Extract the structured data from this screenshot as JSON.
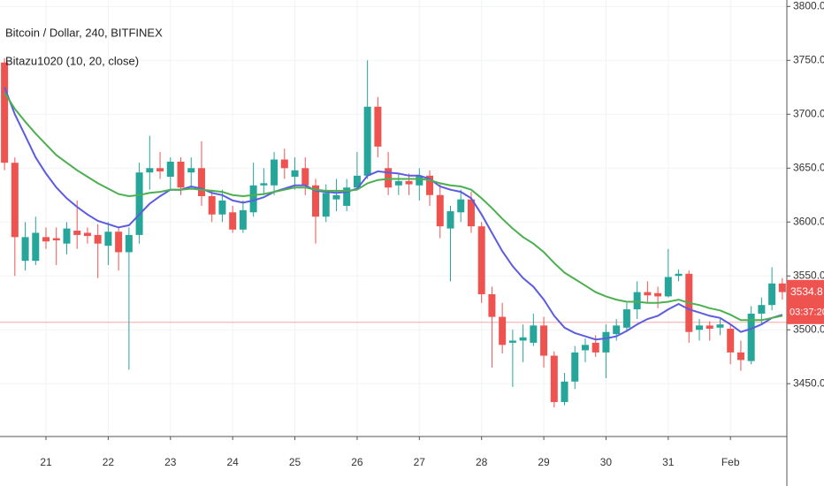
{
  "chart_data": {
    "type": "candlestick",
    "title": "Bitcoin / Dollar, 240, BITFINEX",
    "subtitle": "Bitazu1020 (10, 20, close)",
    "categories": [
      null,
      null,
      null,
      null,
      "21",
      null,
      null,
      null,
      null,
      null,
      "22",
      null,
      null,
      null,
      null,
      null,
      "23",
      null,
      null,
      null,
      null,
      null,
      "24",
      null,
      null,
      null,
      null,
      null,
      "25",
      null,
      null,
      null,
      null,
      null,
      "26",
      null,
      null,
      null,
      null,
      null,
      "27",
      null,
      null,
      null,
      null,
      null,
      "28",
      null,
      null,
      null,
      null,
      null,
      "29",
      null,
      null,
      null,
      null,
      null,
      "30",
      null,
      null,
      null,
      null,
      null,
      "31",
      null,
      null,
      null,
      null,
      null,
      "Feb",
      null,
      null,
      null,
      null,
      null
    ],
    "open": [
      3748,
      3655,
      3564,
      3564,
      3586,
      3585,
      3580,
      3592,
      3590,
      3588,
      3578,
      3591,
      3572,
      3588,
      3646,
      3650,
      3642,
      3656,
      3646,
      3650,
      3624,
      3607,
      3609,
      3593,
      3609,
      3634,
      3634,
      3658,
      3642,
      3650,
      3634,
      3605,
      3621,
      3615,
      3632,
      3643,
      3707,
      3650,
      3634,
      3638,
      3634,
      3643,
      3625,
      3594,
      3609,
      3621,
      3596,
      3533,
      3512,
      3488,
      3490,
      3488,
      3504,
      3476,
      3433,
      3452,
      3481,
      3488,
      3479,
      3496,
      3502,
      3519,
      3535,
      3534,
      3531,
      3550,
      3552,
      3500,
      3504,
      3502,
      3501,
      3479,
      3471,
      3515,
      3523,
      3543
    ],
    "high": [
      3752,
      3660,
      3600,
      3605,
      3595,
      3595,
      3600,
      3620,
      3595,
      3598,
      3600,
      3595,
      3595,
      3655,
      3680,
      3665,
      3660,
      3660,
      3660,
      3675,
      3630,
      3630,
      3615,
      3620,
      3655,
      3650,
      3665,
      3668,
      3660,
      3660,
      3640,
      3635,
      3640,
      3640,
      3665,
      3750,
      3716,
      3665,
      3645,
      3645,
      3650,
      3648,
      3635,
      3615,
      3630,
      3628,
      3600,
      3540,
      3525,
      3500,
      3505,
      3515,
      3512,
      3480,
      3460,
      3485,
      3492,
      3495,
      3505,
      3510,
      3525,
      3545,
      3545,
      3540,
      3575,
      3556,
      3555,
      3510,
      3508,
      3510,
      3505,
      3490,
      3522,
      3530,
      3558,
      3548
    ],
    "low": [
      3648,
      3550,
      3555,
      3560,
      3575,
      3560,
      3570,
      3575,
      3580,
      3548,
      3560,
      3555,
      3463,
      3580,
      3630,
      3640,
      3630,
      3625,
      3630,
      3615,
      3600,
      3600,
      3590,
      3590,
      3605,
      3625,
      3625,
      3640,
      3630,
      3625,
      3580,
      3600,
      3610,
      3610,
      3630,
      3640,
      3660,
      3625,
      3625,
      3625,
      3620,
      3615,
      3585,
      3545,
      3600,
      3590,
      3525,
      3465,
      3478,
      3447,
      3470,
      3485,
      3465,
      3428,
      3430,
      3445,
      3470,
      3475,
      3455,
      3490,
      3498,
      3510,
      3525,
      3520,
      3530,
      3545,
      3488,
      3490,
      3490,
      3495,
      3468,
      3462,
      3468,
      3505,
      3518,
      3528
    ],
    "close": [
      3655,
      3586,
      3586,
      3590,
      3582,
      3583,
      3594,
      3588,
      3587,
      3580,
      3591,
      3572,
      3588,
      3646,
      3650,
      3647,
      3656,
      3632,
      3650,
      3624,
      3607,
      3620,
      3593,
      3611,
      3634,
      3636,
      3658,
      3650,
      3648,
      3634,
      3605,
      3627,
      3625,
      3632,
      3643,
      3707,
      3670,
      3632,
      3638,
      3635,
      3643,
      3625,
      3596,
      3610,
      3621,
      3596,
      3533,
      3512,
      3486,
      3490,
      3493,
      3504,
      3476,
      3433,
      3452,
      3479,
      3486,
      3479,
      3498,
      3504,
      3519,
      3535,
      3532,
      3531,
      3549,
      3552,
      3498,
      3504,
      3501,
      3505,
      3479,
      3472,
      3515,
      3523,
      3543,
      3535
    ],
    "up_color": "#26a69a",
    "down_color": "#ef5350",
    "series": [
      {
        "color": "#5c5ce0",
        "values": [
          3725,
          3700,
          3680,
          3660,
          3645,
          3632,
          3622,
          3614,
          3607,
          3601,
          3598,
          3595,
          3597,
          3607,
          3617,
          3624,
          3630,
          3630,
          3633,
          3631,
          3627,
          3625,
          3620,
          3618,
          3620,
          3623,
          3628,
          3631,
          3634,
          3634,
          3629,
          3628,
          3627,
          3628,
          3631,
          3643,
          3647,
          3646,
          3645,
          3643,
          3643,
          3640,
          3633,
          3630,
          3628,
          3622,
          3607,
          3590,
          3573,
          3559,
          3548,
          3540,
          3528,
          3513,
          3502,
          3497,
          3494,
          3491,
          3492,
          3494,
          3499,
          3505,
          3510,
          3513,
          3519,
          3524,
          3519,
          3516,
          3513,
          3511,
          3505,
          3498,
          3501,
          3505,
          3511,
          3514
        ]
      },
      {
        "color": "#4caf50",
        "values": [
          3720,
          3705,
          3693,
          3682,
          3672,
          3662,
          3655,
          3648,
          3642,
          3636,
          3631,
          3626,
          3624,
          3625,
          3627,
          3628,
          3630,
          3630,
          3631,
          3630,
          3629,
          3628,
          3625,
          3624,
          3625,
          3626,
          3628,
          3630,
          3632,
          3632,
          3630,
          3629,
          3629,
          3629,
          3630,
          3636,
          3639,
          3640,
          3640,
          3640,
          3640,
          3639,
          3636,
          3634,
          3633,
          3630,
          3622,
          3613,
          3603,
          3594,
          3586,
          3580,
          3572,
          3562,
          3553,
          3547,
          3541,
          3535,
          3531,
          3528,
          3526,
          3526,
          3525,
          3525,
          3526,
          3528,
          3525,
          3523,
          3520,
          3518,
          3514,
          3509,
          3509,
          3509,
          3511,
          3513
        ]
      }
    ],
    "ylim": [
      3401,
      3806
    ],
    "yticks": [
      {
        "value": 3450,
        "label": "3450.0"
      },
      {
        "value": 3500,
        "label": "3500.0"
      },
      {
        "value": 3550,
        "label": "3550.0"
      },
      {
        "value": 3600,
        "label": "3600.0"
      },
      {
        "value": 3650,
        "label": "3650.0"
      },
      {
        "value": 3700,
        "label": "3700.0"
      },
      {
        "value": 3750,
        "label": "3750.0"
      },
      {
        "value": 3800,
        "label": "3800.0"
      }
    ],
    "grid": true,
    "last_price": 3534.8,
    "countdown": "03:37:20",
    "price_line": 3507
  }
}
